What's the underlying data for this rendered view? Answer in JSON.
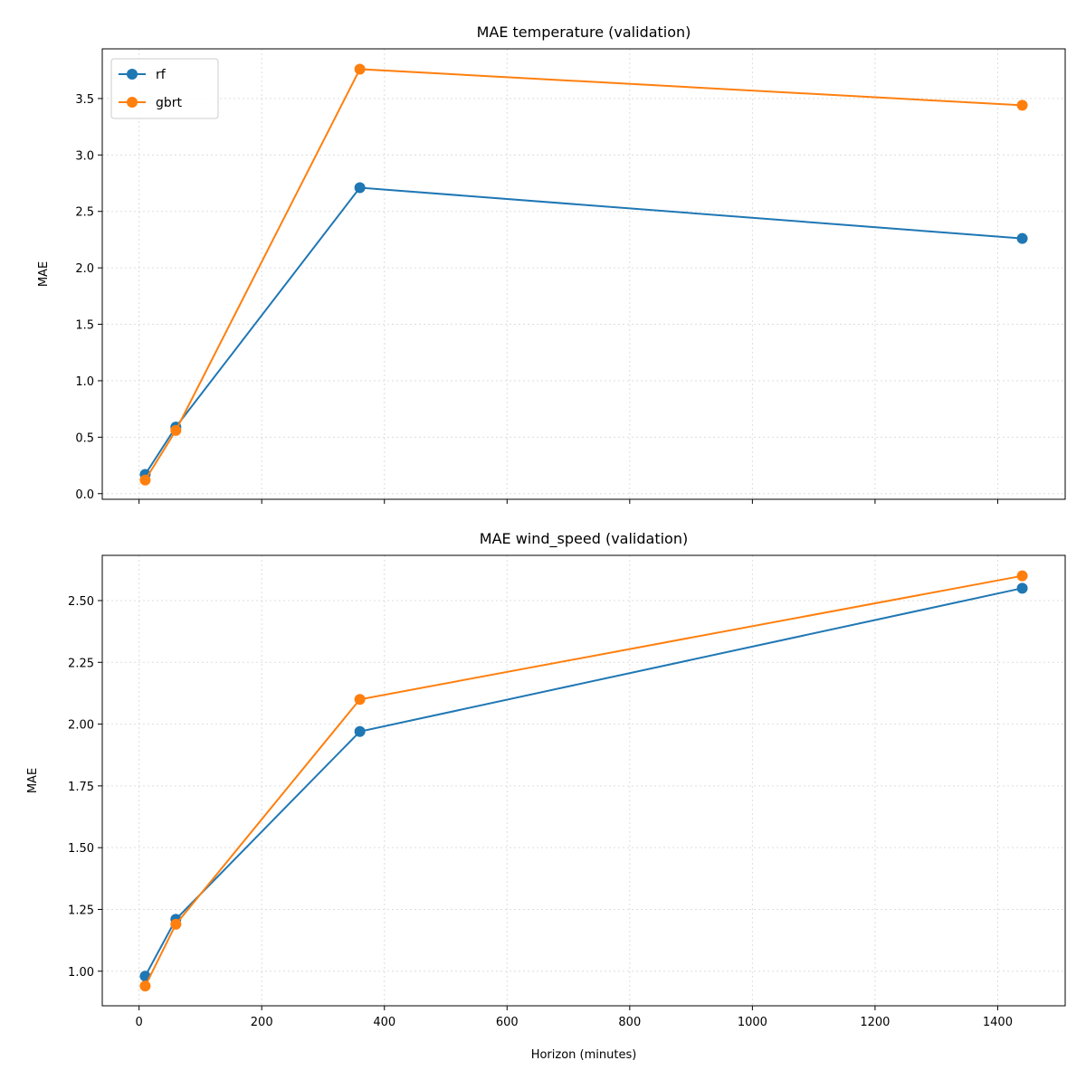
{
  "colors": {
    "rf": "#1f77b4",
    "gbrt": "#ff7f0e",
    "grid": "#dddddd"
  },
  "chart_data": [
    {
      "type": "line",
      "title": "MAE temperature (validation)",
      "xlabel": "",
      "ylabel": "MAE",
      "x": [
        10,
        60,
        360,
        1440
      ],
      "xlim": [
        -60,
        1510
      ],
      "ylim": [
        -0.05,
        3.94
      ],
      "xticks": [
        0,
        200,
        400,
        600,
        800,
        1000,
        1200,
        1400
      ],
      "xtick_labels_shown": false,
      "yticks": [
        "0.0",
        "0.5",
        "1.0",
        "1.5",
        "2.0",
        "2.5",
        "3.0",
        "3.5"
      ],
      "grid": true,
      "legend": "top-left",
      "series": [
        {
          "name": "rf",
          "color_key": "rf",
          "values": [
            0.17,
            0.59,
            2.71,
            2.26
          ]
        },
        {
          "name": "gbrt",
          "color_key": "gbrt",
          "values": [
            0.12,
            0.56,
            3.76,
            3.44
          ]
        }
      ]
    },
    {
      "type": "line",
      "title": "MAE wind_speed (validation)",
      "xlabel": "Horizon (minutes)",
      "ylabel": "MAE",
      "x": [
        10,
        60,
        360,
        1440
      ],
      "xlim": [
        -60,
        1510
      ],
      "ylim": [
        0.86,
        2.683
      ],
      "xticks": [
        0,
        200,
        400,
        600,
        800,
        1000,
        1200,
        1400
      ],
      "xtick_labels_shown": true,
      "yticks": [
        "1.00",
        "1.25",
        "1.50",
        "1.75",
        "2.00",
        "2.25",
        "2.50"
      ],
      "grid": true,
      "series": [
        {
          "color_key": "rf",
          "values": [
            0.98,
            1.21,
            1.97,
            2.55
          ]
        },
        {
          "color_key": "gbrt",
          "values": [
            0.94,
            1.19,
            2.1,
            2.6
          ]
        }
      ]
    }
  ]
}
